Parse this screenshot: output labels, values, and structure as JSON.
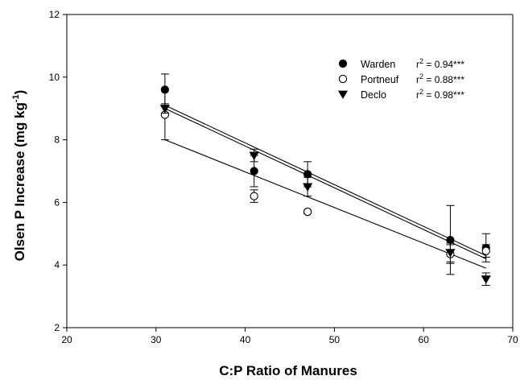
{
  "chart_data": {
    "type": "scatter",
    "title": "",
    "xlabel": "C:P Ratio of Manures",
    "ylabel_main": "Olsen P Increase (mg kg",
    "ylabel_sup": "-1",
    "ylabel_close": ")",
    "xlim": [
      20,
      70
    ],
    "ylim": [
      2,
      12
    ],
    "xticks": [
      "20",
      "30",
      "40",
      "50",
      "60",
      "70"
    ],
    "yticks": [
      "2",
      "4",
      "6",
      "8",
      "10",
      "12"
    ],
    "grid": false,
    "legend_position": "top-right",
    "series": [
      {
        "name": "Warden",
        "r2_prefix": "r",
        "r2_value": " = 0.94***",
        "marker": "filled-circle",
        "points": [
          {
            "x": 31,
            "y": 9.6,
            "err": 0.5
          },
          {
            "x": 41,
            "y": 7.0,
            "err": 0.5
          },
          {
            "x": 47,
            "y": 6.9,
            "err": 0.4
          },
          {
            "x": 63,
            "y": 4.8,
            "err": 1.1
          },
          {
            "x": 67,
            "y": 4.55,
            "err": 0.45
          }
        ],
        "fit": {
          "x0": 31,
          "y0": 9.1,
          "x1": 67,
          "y1": 4.3
        }
      },
      {
        "name": "Portneuf",
        "r2_prefix": "r",
        "r2_value": " = 0.88***",
        "marker": "open-circle",
        "points": [
          {
            "x": 31,
            "y": 8.8,
            "err": 0.8
          },
          {
            "x": 41,
            "y": 6.2,
            "err": 0.2
          },
          {
            "x": 47,
            "y": 5.7,
            "err": 0.05
          },
          {
            "x": 63,
            "y": 4.35,
            "err": 0.3
          },
          {
            "x": 67,
            "y": 4.45,
            "err": 0.2
          }
        ],
        "fit": {
          "x0": 31,
          "y0": 8.0,
          "x1": 67,
          "y1": 3.9
        }
      },
      {
        "name": "Declo",
        "r2_prefix": "r",
        "r2_value": " = 0.98***",
        "marker": "filled-triangle-down",
        "points": [
          {
            "x": 31,
            "y": 9.0,
            "err": 0.15
          },
          {
            "x": 41,
            "y": 7.5,
            "err": 0.2
          },
          {
            "x": 47,
            "y": 6.5,
            "err": 0.3
          },
          {
            "x": 63,
            "y": 4.4,
            "err": 0.3
          },
          {
            "x": 67,
            "y": 3.55,
            "err": 0.2
          }
        ],
        "fit": {
          "x0": 31,
          "y0": 9.0,
          "x1": 67,
          "y1": 4.2
        }
      }
    ]
  }
}
